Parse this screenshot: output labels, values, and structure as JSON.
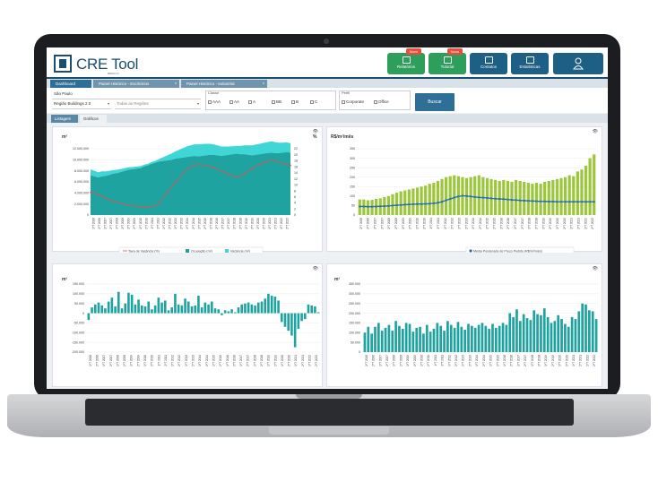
{
  "app": {
    "brand": "CRE Tool",
    "brand_sub": "BREDCO",
    "top_buttons": [
      {
        "label": "Relatórios",
        "badge": "Novo",
        "color": "#2e9e5c",
        "icon": "report-icon"
      },
      {
        "label": "Tutorial",
        "badge": "Novo",
        "color": "#2e9e5c",
        "icon": "video-icon"
      },
      {
        "label": "Contatos",
        "badge": "",
        "color": "#1e5f86",
        "icon": "contacts-icon"
      },
      {
        "label": "Estatísticas",
        "badge": "",
        "color": "#1e5f86",
        "icon": "stats-icon"
      },
      {
        "label": "",
        "badge": "",
        "color": "#1e5f86",
        "icon": "user-icon"
      }
    ]
  },
  "tabs": [
    {
      "label": "Dashboard"
    },
    {
      "label": "Painel Histórico - Escritórios",
      "close": "x"
    },
    {
      "label": "Painel Histórico - Industrial",
      "close": "x"
    }
  ],
  "filters": {
    "city": "São Paulo",
    "region": "Região Buildings 2.0",
    "regions_placeholder": "Todas as Regiões",
    "classe_label": "Classe",
    "classes": [
      "AAA",
      "AA",
      "A",
      "BB",
      "B",
      "C"
    ],
    "perfil_label": "Perfil",
    "perfis": [
      "Corporate",
      "Office"
    ],
    "search_label": "Buscar"
  },
  "subtabs": [
    {
      "label": "Listagem"
    },
    {
      "label": "Gráficos"
    }
  ],
  "years": [
    "2006",
    "2007",
    "2008",
    "2009",
    "2010",
    "2011",
    "2012",
    "2013",
    "2014",
    "2015",
    "2016",
    "2017",
    "2018",
    "2019",
    "2020",
    "2021",
    "2022"
  ],
  "chart_data": [
    {
      "type": "area",
      "ylabel": "m²",
      "ylabel_right": "%",
      "ylim": [
        0,
        12000000
      ],
      "yticks": [
        "0",
        "2.000.000",
        "4.000.000",
        "6.000.000",
        "8.000.000",
        "10.000.000",
        "12.000.000"
      ],
      "ylim_right": [
        0,
        22
      ],
      "yticks_right": [
        "0",
        "2",
        "4",
        "6",
        "8",
        "10",
        "12",
        "14",
        "16",
        "18",
        "20",
        "22"
      ],
      "series": [
        {
          "name": "Ocupação (m²)",
          "color": "#1fa3a0",
          "values": [
            7200000,
            7000000,
            6800000,
            7000000,
            7100000,
            7300000,
            7500000,
            7600000,
            7800000,
            8000000,
            8200000,
            8300000,
            8400000,
            8500000,
            8800000,
            9000000,
            9300000,
            9500000,
            9700000,
            9800000,
            9900000,
            10000000,
            10200000,
            10300000,
            10400000,
            10500000,
            10600000,
            10700000,
            10600000,
            10700000,
            10800000,
            10900000,
            10900000,
            10800000,
            10700000,
            10800000,
            10900000,
            11000000,
            11100000,
            11000000,
            11000000,
            10900000,
            10800000,
            10900000,
            11000000,
            11100000,
            11200000,
            11300000,
            11200000,
            11200000,
            11300000,
            11400000,
            11300000
          ]
        },
        {
          "name": "Vacância (m²)",
          "color": "#3fd6d6",
          "values": [
            1100000,
            1000000,
            950000,
            900000,
            800000,
            700000,
            650000,
            600000,
            550000,
            500000,
            450000,
            400000,
            380000,
            350000,
            320000,
            300000,
            330000,
            350000,
            500000,
            700000,
            900000,
            1100000,
            1300000,
            1500000,
            1700000,
            1900000,
            2000000,
            2100000,
            2200000,
            2150000,
            2100000,
            2000000,
            1900000,
            1800000,
            1700000,
            1600000,
            1500000,
            1450000,
            1400000,
            1500000,
            1600000,
            1700000,
            1800000,
            1850000,
            1900000,
            1950000,
            2000000,
            2050000,
            2000000,
            1900000,
            1800000,
            1750000,
            1700000
          ]
        },
        {
          "name": "Taxa de Vacância (%)",
          "color": "#e05050",
          "axis": "right",
          "values": [
            7.5,
            7.2,
            6.8,
            6.2,
            5.6,
            5.0,
            4.6,
            4.2,
            3.8,
            3.5,
            3.2,
            3.0,
            2.9,
            2.8,
            2.7,
            2.6,
            2.8,
            3.1,
            4.2,
            5.8,
            7.5,
            9.2,
            10.8,
            12.3,
            13.9,
            15.0,
            16.0,
            16.5,
            16.8,
            16.6,
            16.5,
            16.2,
            15.8,
            15.2,
            14.7,
            14.0,
            13.5,
            13.0,
            12.5,
            13.0,
            13.8,
            14.5,
            15.4,
            16.2,
            16.8,
            17.4,
            17.8,
            18.2,
            18.0,
            17.6,
            17.1,
            16.9,
            16.5
          ]
        }
      ],
      "legend": "bottom"
    },
    {
      "type": "bar",
      "ylabel": "R$/m²/mês",
      "ylim": [
        0,
        350
      ],
      "yticks": [
        "0",
        "50",
        "100",
        "150",
        "200",
        "250",
        "300",
        "350"
      ],
      "series": [
        {
          "name": "bars",
          "color": "#9cc63b",
          "values": [
            82,
            82,
            78,
            80,
            85,
            88,
            95,
            100,
            110,
            118,
            125,
            130,
            135,
            140,
            145,
            150,
            155,
            165,
            170,
            180,
            190,
            200,
            205,
            210,
            205,
            200,
            195,
            200,
            205,
            210,
            200,
            195,
            190,
            185,
            180,
            185,
            180,
            175,
            185,
            180,
            175,
            170,
            165,
            170,
            165,
            175,
            180,
            185,
            190,
            195,
            200,
            210,
            205,
            230,
            240,
            260,
            300,
            320
          ]
        },
        {
          "name": "Média Ponderada de Preço Pedido (R$/m²/mês)",
          "color": "#2a6fb0",
          "values": [
            45,
            45,
            44,
            44,
            45,
            46,
            47,
            48,
            50,
            52,
            53,
            55,
            56,
            57,
            58,
            58,
            59,
            60,
            62,
            65,
            70,
            78,
            85,
            92,
            98,
            102,
            100,
            98,
            95,
            93,
            92,
            90,
            88,
            86,
            85,
            84,
            82,
            80,
            79,
            77,
            76,
            75,
            74,
            73,
            72,
            72,
            71,
            71,
            70,
            70,
            70,
            70,
            70,
            70,
            70,
            70,
            70,
            70
          ]
        }
      ],
      "legend": "bottom"
    },
    {
      "type": "bar",
      "ylabel": "m²",
      "ylim": [
        -200000,
        150000
      ],
      "yticks": [
        "-200.000",
        "-150.000",
        "-100.000",
        "-50.000",
        "0",
        "50.000",
        "100.000",
        "150.000"
      ],
      "values": [
        -35000,
        30000,
        45000,
        55000,
        40000,
        25000,
        60000,
        80000,
        35000,
        110000,
        25000,
        50000,
        105000,
        95000,
        45000,
        70000,
        40000,
        35000,
        60000,
        20000,
        40000,
        80000,
        55000,
        65000,
        15000,
        30000,
        100000,
        45000,
        40000,
        75000,
        60000,
        35000,
        40000,
        90000,
        30000,
        55000,
        45000,
        60000,
        25000,
        20000,
        -10000,
        15000,
        10000,
        20000,
        5000,
        30000,
        45000,
        50000,
        55000,
        45000,
        40000,
        55000,
        60000,
        75000,
        100000,
        90000,
        85000,
        65000,
        -45000,
        -70000,
        -90000,
        -115000,
        -175000,
        -80000,
        -40000,
        -30000,
        45000,
        40000,
        35000,
        5000
      ]
    },
    {
      "type": "bar",
      "ylabel": "m²",
      "ylim": [
        0,
        350000
      ],
      "yticks": [
        "0",
        "50.000",
        "100.000",
        "150.000",
        "200.000",
        "250.000",
        "300.000",
        "350.000"
      ],
      "values": [
        100000,
        130000,
        95000,
        130000,
        150000,
        110000,
        125000,
        140000,
        110000,
        160000,
        135000,
        120000,
        150000,
        145000,
        105000,
        125000,
        130000,
        95000,
        140000,
        105000,
        120000,
        150000,
        135000,
        110000,
        160000,
        140000,
        125000,
        155000,
        130000,
        115000,
        145000,
        135000,
        125000,
        140000,
        150000,
        135000,
        120000,
        145000,
        125000,
        135000,
        150000,
        140000,
        200000,
        180000,
        220000,
        160000,
        195000,
        175000,
        165000,
        215000,
        195000,
        190000,
        225000,
        180000,
        150000,
        160000,
        190000,
        170000,
        145000,
        130000,
        180000,
        170000,
        210000,
        250000,
        245000,
        215000,
        210000,
        170000
      ]
    }
  ]
}
